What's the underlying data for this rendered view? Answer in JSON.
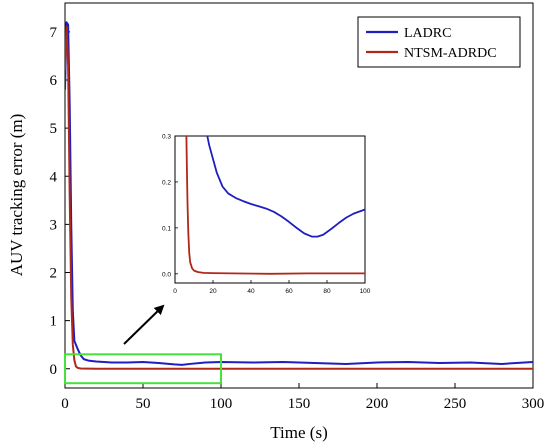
{
  "chart_data": {
    "type": "line",
    "xlabel": "Time (s)",
    "ylabel": "AUV tracking error (m)",
    "xlim": [
      0,
      300
    ],
    "ylim": [
      -0.4,
      7.6
    ],
    "xticks": [
      0,
      50,
      100,
      150,
      200,
      250,
      300
    ],
    "yticks": [
      0,
      1,
      2,
      3,
      4,
      5,
      6,
      7
    ],
    "grid": false,
    "legend": "top-right",
    "series": [
      {
        "name": "LADRC",
        "color": "#1f1fbf",
        "x": [
          0,
          1,
          2,
          3,
          4,
          5,
          6,
          8,
          10,
          12,
          15,
          20,
          30,
          40,
          50,
          60,
          70,
          75,
          80,
          90,
          100,
          120,
          140,
          160,
          180,
          200,
          220,
          240,
          260,
          280,
          300
        ],
        "y": [
          5.8,
          7.2,
          7.15,
          5.5,
          3.0,
          1.2,
          0.58,
          0.42,
          0.28,
          0.2,
          0.17,
          0.15,
          0.13,
          0.13,
          0.14,
          0.12,
          0.09,
          0.08,
          0.1,
          0.13,
          0.14,
          0.13,
          0.14,
          0.12,
          0.1,
          0.13,
          0.14,
          0.12,
          0.13,
          0.1,
          0.14
        ]
      },
      {
        "name": "NTSM-ADRDC",
        "color": "#b02818",
        "x": [
          0,
          1,
          2,
          3,
          4,
          5,
          6,
          7,
          8,
          10,
          15,
          20,
          50,
          100,
          150,
          200,
          250,
          300
        ],
        "y": [
          6.2,
          7.1,
          6.3,
          3.6,
          1.5,
          0.5,
          0.18,
          0.05,
          0.02,
          0.005,
          0.002,
          0.0,
          0.0,
          0.001,
          0.0,
          0.0,
          0.001,
          0.0
        ]
      }
    ],
    "highlight_box": {
      "x": [
        0,
        100
      ],
      "y": [
        -0.3,
        0.3
      ],
      "color": "#46e23c"
    },
    "inset": {
      "xlim": [
        0,
        100
      ],
      "ylim": [
        -0.02,
        0.3
      ],
      "xticks": [
        0,
        20,
        40,
        60,
        80,
        100
      ],
      "yticks": [
        "0.0",
        "0.1",
        "0.2",
        "0.3"
      ],
      "series": [
        {
          "ref": "LADRC",
          "x": [
            17,
            18,
            20,
            22,
            25,
            28,
            32,
            36,
            40,
            44,
            48,
            52,
            56,
            60,
            64,
            68,
            72,
            75,
            78,
            82,
            86,
            90,
            94,
            100
          ],
          "y": [
            0.3,
            0.28,
            0.25,
            0.22,
            0.19,
            0.175,
            0.165,
            0.158,
            0.152,
            0.147,
            0.142,
            0.135,
            0.125,
            0.113,
            0.1,
            0.088,
            0.081,
            0.081,
            0.085,
            0.097,
            0.11,
            0.122,
            0.131,
            0.14
          ]
        },
        {
          "ref": "NTSM-ADRDC",
          "x": [
            6.0,
            6.3,
            6.6,
            7.0,
            7.5,
            8.0,
            9.0,
            10,
            12,
            15,
            20,
            30,
            50,
            70,
            100
          ],
          "y": [
            0.3,
            0.22,
            0.15,
            0.09,
            0.045,
            0.025,
            0.012,
            0.007,
            0.004,
            0.002,
            0.0015,
            0.001,
            0.0,
            0.001,
            0.001
          ]
        }
      ]
    }
  }
}
